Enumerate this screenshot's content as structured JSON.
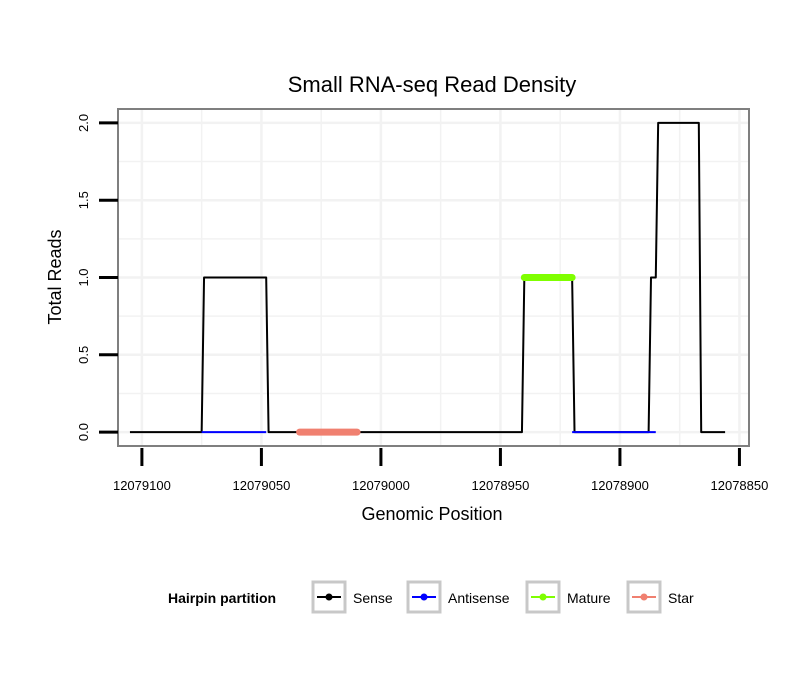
{
  "chart_data": {
    "type": "line",
    "title": "Small RNA-seq Read Density",
    "xlabel": "Genomic Position",
    "ylabel": "Total Reads",
    "xlim": [
      12079110,
      12078846
    ],
    "ylim": [
      -0.09,
      2.09
    ],
    "x_reversed": true,
    "x_ticks": [
      12079100,
      12079050,
      12079000,
      12078950,
      12078900,
      12078850
    ],
    "x_tick_labels": [
      "12079100",
      "12079050",
      "12079000",
      "12078950",
      "12078900",
      "12078850"
    ],
    "y_ticks": [
      0.0,
      0.5,
      1.0,
      1.5,
      2.0
    ],
    "y_tick_labels": [
      "0.0",
      "0.5",
      "1.0",
      "1.5",
      "2.0"
    ],
    "grid": true,
    "legend": {
      "title": "Hairpin partition",
      "position": "bottom",
      "entries": [
        "Sense",
        "Antisense",
        "Mature",
        "Star"
      ]
    },
    "series": [
      {
        "name": "Sense",
        "color": "#000000",
        "x": [
          12079105,
          12079075,
          12079074,
          12079048,
          12079047,
          12078941,
          12078940,
          12078920,
          12078919,
          12078888,
          12078887,
          12078885,
          12078884,
          12078867,
          12078866,
          12078856
        ],
        "y": [
          0,
          0,
          1,
          1,
          0,
          0,
          1,
          1,
          0,
          0,
          1,
          1,
          2,
          2,
          0,
          0
        ]
      },
      {
        "name": "Antisense",
        "color": "#0000ff",
        "x": [
          12079075,
          12079048,
          12078940,
          12078920,
          12078885,
          12078866
        ],
        "y": [
          0,
          0,
          null,
          0,
          0,
          null
        ]
      },
      {
        "name": "Mature",
        "color": "#7fff00",
        "x": [
          12078940,
          12078920
        ],
        "y": [
          1,
          1
        ]
      },
      {
        "name": "Star",
        "color": "#f08070",
        "x": [
          12079034,
          12079010
        ],
        "y": [
          0,
          0
        ]
      }
    ]
  }
}
